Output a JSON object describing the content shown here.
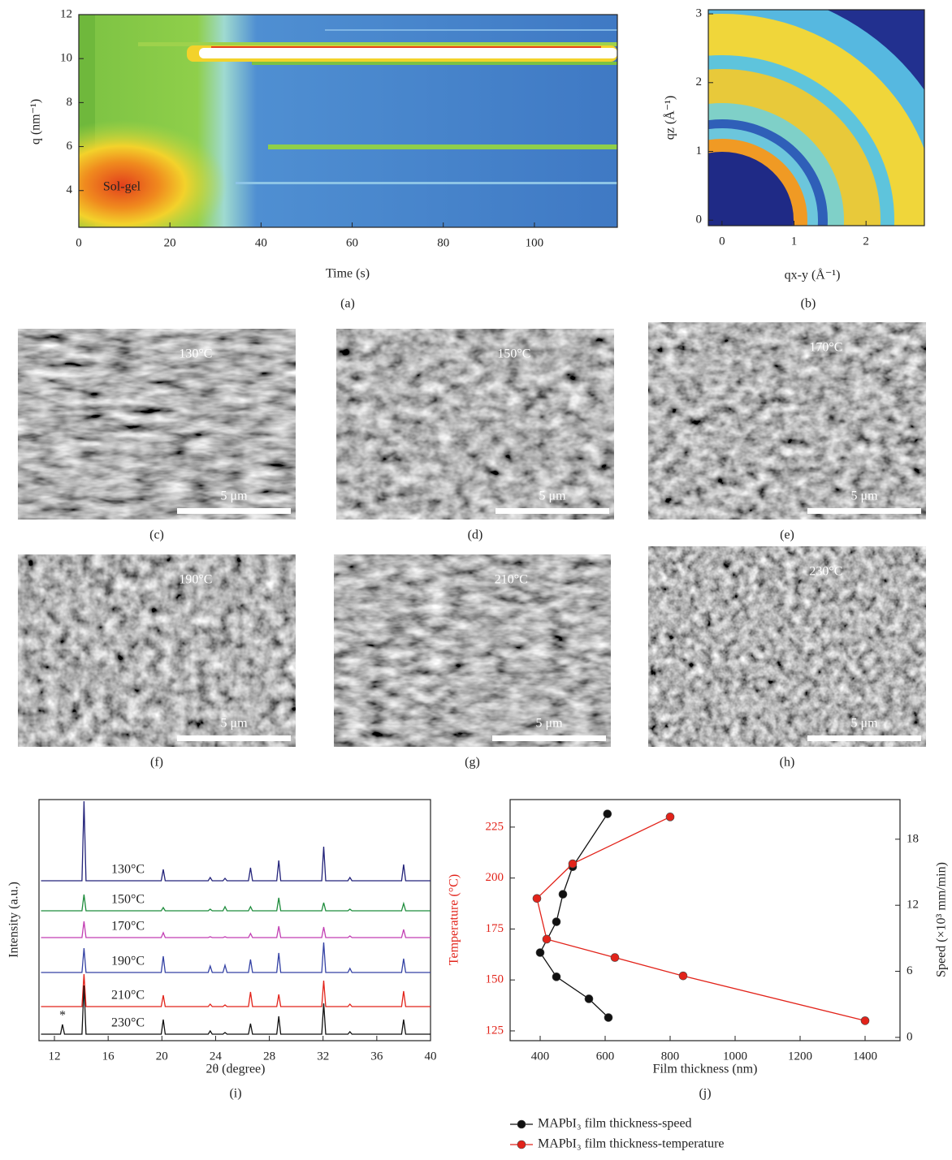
{
  "chart_data": [
    {
      "type": "heatmap",
      "xlabel": "Time (s)",
      "ylabel": "q (nm⁻¹)",
      "xlim": [
        0,
        118.2
      ],
      "xticks": [
        0,
        20,
        40,
        60,
        80,
        100
      ],
      "ylim": [
        2.33,
        12
      ],
      "yticks": [
        4,
        6,
        8,
        10,
        12
      ],
      "annotation": "Sol-gel",
      "caption": "(a)"
    },
    {
      "type": "heatmap",
      "xlabel": "qx-y (Å⁻¹)",
      "ylabel": "qz (Å⁻¹)",
      "xlim": [
        -0.19,
        2.81
      ],
      "xticks": [
        0,
        1,
        2
      ],
      "ylim": [
        -0.08,
        3.06
      ],
      "yticks": [
        0,
        1,
        2,
        3
      ],
      "caption": "(b)"
    },
    {
      "type": "line",
      "xlabel": "2θ (degree)",
      "ylabel": "Intensity (a.u.)",
      "xlim": [
        10.85,
        40
      ],
      "xticks": [
        12,
        16,
        20,
        24,
        28,
        32,
        36,
        40
      ],
      "annotation": "*",
      "caption": "(i)",
      "x": [
        11,
        12.45,
        12.6,
        12.75,
        14.05,
        14.2,
        14.35,
        19.95,
        20.1,
        20.25,
        23.45,
        23.6,
        23.75,
        24.55,
        24.7,
        24.85,
        26.45,
        26.6,
        26.75,
        28.55,
        28.7,
        28.85,
        31.9,
        32.05,
        32.2,
        33.85,
        34,
        34.15,
        37.85,
        38,
        38.15,
        40
      ],
      "series": [
        {
          "name": "130°C",
          "color": "#23237a",
          "values": [
            0,
            0,
            0,
            0,
            0,
            98,
            0,
            0,
            14,
            0,
            0,
            4,
            0,
            0,
            3,
            0,
            0,
            16,
            0,
            0,
            25,
            0,
            0,
            42,
            0,
            0,
            4,
            0,
            0,
            20,
            0,
            0
          ]
        },
        {
          "name": "150°C",
          "color": "#1e8c3c",
          "values": [
            0,
            0,
            0,
            0,
            0,
            20,
            0,
            0,
            4,
            0,
            0,
            2,
            0,
            0,
            5,
            0,
            0,
            5,
            0,
            0,
            16,
            0,
            0,
            10,
            0,
            0,
            2,
            0,
            0,
            9,
            0,
            0
          ]
        },
        {
          "name": "170°C",
          "color": "#c23fb3",
          "values": [
            0,
            0,
            0,
            0,
            0,
            20,
            0,
            0,
            6,
            0,
            0,
            1,
            0,
            0,
            1,
            0,
            0,
            5,
            0,
            0,
            14,
            0,
            0,
            13,
            0,
            0,
            2,
            0,
            0,
            10,
            0,
            0
          ]
        },
        {
          "name": "190°C",
          "color": "#3442a4",
          "values": [
            0,
            0,
            0,
            0,
            0,
            30,
            0,
            0,
            20,
            0,
            0,
            8,
            0,
            0,
            9,
            0,
            0,
            16,
            0,
            0,
            24,
            0,
            0,
            37,
            0,
            0,
            5,
            0,
            0,
            17,
            0,
            0
          ]
        },
        {
          "name": "210°C",
          "color": "#e2231a",
          "values": [
            0,
            0,
            0,
            0,
            0,
            40,
            0,
            0,
            14,
            0,
            0,
            3,
            0,
            0,
            2,
            0,
            0,
            18,
            0,
            0,
            15,
            0,
            0,
            32,
            0,
            0,
            3,
            0,
            0,
            19,
            0,
            0
          ]
        },
        {
          "name": "230°C",
          "color": "#111111",
          "values": [
            0,
            0,
            12,
            0,
            0,
            60,
            0,
            0,
            18,
            0,
            0,
            4,
            0,
            0,
            2,
            0,
            0,
            13,
            0,
            0,
            22,
            0,
            0,
            38,
            0,
            0,
            3,
            0,
            0,
            18,
            0,
            0
          ]
        }
      ]
    },
    {
      "type": "line",
      "xlabel": "Film thickness (nm)",
      "ylabel": "Temperature (°C)",
      "ylabel_color": "#e2231a",
      "y2label": "Speed (×10³ mm/min)",
      "xlim": [
        307.5,
        1507.5
      ],
      "xticks": [
        400,
        600,
        800,
        1000,
        1200,
        1400
      ],
      "ylim": [
        120.2,
        238.5
      ],
      "yticks": [
        125,
        150,
        175,
        200,
        225
      ],
      "y2lim": [
        -0.3,
        21.6
      ],
      "y2ticks": [
        0,
        6,
        12,
        18
      ],
      "caption": "(j)",
      "series": [
        {
          "name": "MAPbI₃ film thickness-speed",
          "color": "#111111",
          "axis": "y2",
          "x": [
            607,
            500,
            470,
            450,
            400,
            450,
            550,
            610
          ],
          "values": [
            20.3,
            15.5,
            13.0,
            10.5,
            7.7,
            5.5,
            3.5,
            1.8
          ]
        },
        {
          "name": "MAPbI₃ film thickness-temperature",
          "color": "#e2231a",
          "x": [
            800,
            500,
            390,
            420,
            630,
            840,
            1400
          ],
          "values": [
            230,
            207,
            190,
            170,
            161,
            152,
            130
          ]
        }
      ]
    }
  ],
  "micrographs": [
    {
      "label": "130°C",
      "scale_bar": "5 μm",
      "caption": "(c)"
    },
    {
      "label": "150°C",
      "scale_bar": "5 μm",
      "caption": "(d)"
    },
    {
      "label": "170°C",
      "scale_bar": "5 μm",
      "caption": "(e)"
    },
    {
      "label": "190°C",
      "scale_bar": "5 μm",
      "caption": "(f)"
    },
    {
      "label": "210°C",
      "scale_bar": "5 μm",
      "caption": "(g)"
    },
    {
      "label": "230°C",
      "scale_bar": "5 μm",
      "caption": "(h)"
    }
  ]
}
